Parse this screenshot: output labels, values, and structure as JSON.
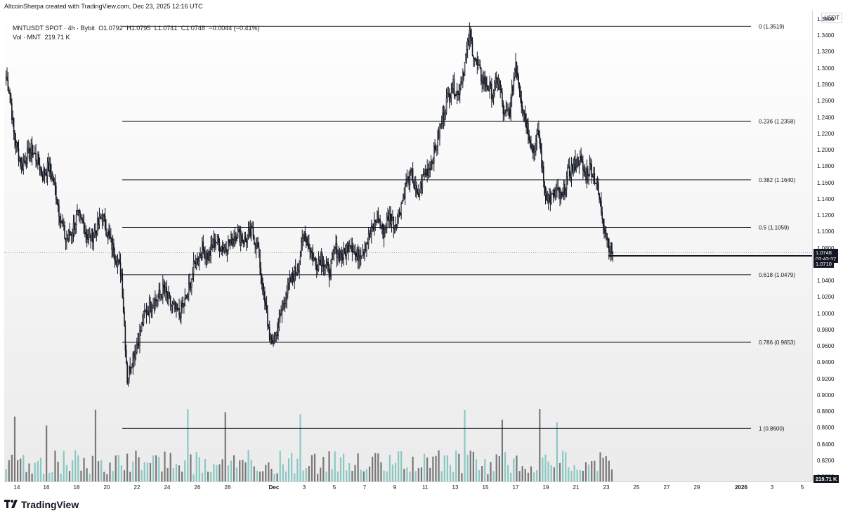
{
  "header": {
    "text": "AltcoinSherpa created with TradingView.com, Dec 23, 2025 12:16 UTC"
  },
  "legend": {
    "symbol": "MNTUSDT SPOT · 4h · Bybit",
    "open": "O1.0792",
    "high": "H1.0795",
    "low": "L1.0741",
    "close": "C1.0748",
    "change": "−0.0044 (−0.41%)",
    "vol_label": "Vol · MNT",
    "vol_value": "219.71 K"
  },
  "price_axis": {
    "unit": "USDT",
    "ticks": [
      "1.3600",
      "1.3400",
      "1.3200",
      "1.3000",
      "1.2800",
      "1.2600",
      "1.2400",
      "1.2200",
      "1.2000",
      "1.1800",
      "1.1600",
      "1.1400",
      "1.1200",
      "1.1000",
      "1.0800",
      "1.0600",
      "1.0400",
      "1.0200",
      "1.0000",
      "0.9800",
      "0.9600",
      "0.9400",
      "0.9200",
      "0.9000",
      "0.8800",
      "0.8600",
      "0.8400",
      "0.8200",
      "0.8000"
    ],
    "last_price": "1.0748",
    "countdown": "03:43:37",
    "marker_price": "1.0710",
    "volume_badge": "219.71 K"
  },
  "time_axis": {
    "ticks": [
      "14",
      "16",
      "18",
      "20",
      "22",
      "24",
      "26",
      "28",
      "Dec",
      "3",
      "5",
      "7",
      "9",
      "11",
      "13",
      "15",
      "17",
      "19",
      "21",
      "23",
      "25",
      "27",
      "29",
      "2026",
      "3",
      "5"
    ]
  },
  "fib_levels": [
    {
      "label": "0 (1.3519)",
      "price": 1.3519
    },
    {
      "label": "0.236 (1.2358)",
      "price": 1.2358
    },
    {
      "label": "0.382 (1.1640)",
      "price": 1.164
    },
    {
      "label": "0.5 (1.1059)",
      "price": 1.1059
    },
    {
      "label": "0.618 (1.0479)",
      "price": 1.0479
    },
    {
      "label": "0.786 (0.9653)",
      "price": 0.9653
    },
    {
      "label": "1 (0.8600)",
      "price": 0.86
    }
  ],
  "colors": {
    "up": "#ffffff",
    "down": "#131722",
    "vol_up": "#7fc4c0",
    "vol_down": "#6b6b6b",
    "line": "#131722"
  },
  "footer": {
    "brand": "TradingView",
    "logo_icon": "tradingview-logo-icon"
  },
  "chart_data": {
    "type": "candlestick",
    "title": "",
    "price_range": [
      0.795,
      1.372
    ],
    "anchors": [
      [
        0,
        1.29
      ],
      [
        4,
        1.27
      ],
      [
        8,
        1.22
      ],
      [
        12,
        1.2
      ],
      [
        16,
        1.18
      ],
      [
        20,
        1.19
      ],
      [
        26,
        1.2
      ],
      [
        32,
        1.19
      ],
      [
        38,
        1.17
      ],
      [
        44,
        1.18
      ],
      [
        50,
        1.16
      ],
      [
        56,
        1.12
      ],
      [
        62,
        1.09
      ],
      [
        68,
        1.1
      ],
      [
        74,
        1.12
      ],
      [
        80,
        1.11
      ],
      [
        86,
        1.09
      ],
      [
        92,
        1.1
      ],
      [
        100,
        1.12
      ],
      [
        108,
        1.09
      ],
      [
        114,
        1.07
      ],
      [
        120,
        1.05
      ],
      [
        126,
        0.92
      ],
      [
        132,
        0.95
      ],
      [
        138,
        0.97
      ],
      [
        144,
        1.0
      ],
      [
        150,
        1.01
      ],
      [
        158,
        1.02
      ],
      [
        164,
        1.03
      ],
      [
        172,
        1.01
      ],
      [
        180,
        1.0
      ],
      [
        188,
        1.02
      ],
      [
        196,
        1.06
      ],
      [
        204,
        1.08
      ],
      [
        210,
        1.07
      ],
      [
        218,
        1.09
      ],
      [
        226,
        1.08
      ],
      [
        234,
        1.09
      ],
      [
        240,
        1.1
      ],
      [
        248,
        1.09
      ],
      [
        256,
        1.1
      ],
      [
        262,
        1.08
      ],
      [
        268,
        1.02
      ],
      [
        272,
        0.99
      ],
      [
        276,
        0.96
      ],
      [
        282,
        0.98
      ],
      [
        290,
        1.02
      ],
      [
        296,
        1.04
      ],
      [
        304,
        1.06
      ],
      [
        310,
        1.1
      ],
      [
        316,
        1.08
      ],
      [
        322,
        1.06
      ],
      [
        328,
        1.07
      ],
      [
        336,
        1.05
      ],
      [
        342,
        1.08
      ],
      [
        350,
        1.07
      ],
      [
        358,
        1.09
      ],
      [
        364,
        1.07
      ],
      [
        372,
        1.08
      ],
      [
        380,
        1.1
      ],
      [
        386,
        1.12
      ],
      [
        392,
        1.1
      ],
      [
        398,
        1.12
      ],
      [
        404,
        1.11
      ],
      [
        410,
        1.13
      ],
      [
        416,
        1.16
      ],
      [
        422,
        1.17
      ],
      [
        428,
        1.14
      ],
      [
        434,
        1.17
      ],
      [
        440,
        1.18
      ],
      [
        446,
        1.2
      ],
      [
        452,
        1.23
      ],
      [
        458,
        1.26
      ],
      [
        464,
        1.28
      ],
      [
        470,
        1.27
      ],
      [
        476,
        1.3
      ],
      [
        482,
        1.34
      ],
      [
        488,
        1.31
      ],
      [
        494,
        1.29
      ],
      [
        500,
        1.28
      ],
      [
        506,
        1.27
      ],
      [
        512,
        1.29
      ],
      [
        518,
        1.24
      ],
      [
        524,
        1.25
      ],
      [
        530,
        1.31
      ],
      [
        536,
        1.26
      ],
      [
        542,
        1.23
      ],
      [
        548,
        1.2
      ],
      [
        554,
        1.22
      ],
      [
        560,
        1.15
      ],
      [
        566,
        1.14
      ],
      [
        572,
        1.15
      ],
      [
        578,
        1.14
      ],
      [
        584,
        1.17
      ],
      [
        590,
        1.18
      ],
      [
        596,
        1.19
      ],
      [
        602,
        1.17
      ],
      [
        608,
        1.18
      ],
      [
        614,
        1.16
      ],
      [
        620,
        1.12
      ],
      [
        624,
        1.1
      ],
      [
        628,
        1.08
      ],
      [
        631,
        1.075
      ]
    ],
    "candles_total": 632,
    "current_price": 1.0748,
    "volume_unit": "MNT"
  }
}
